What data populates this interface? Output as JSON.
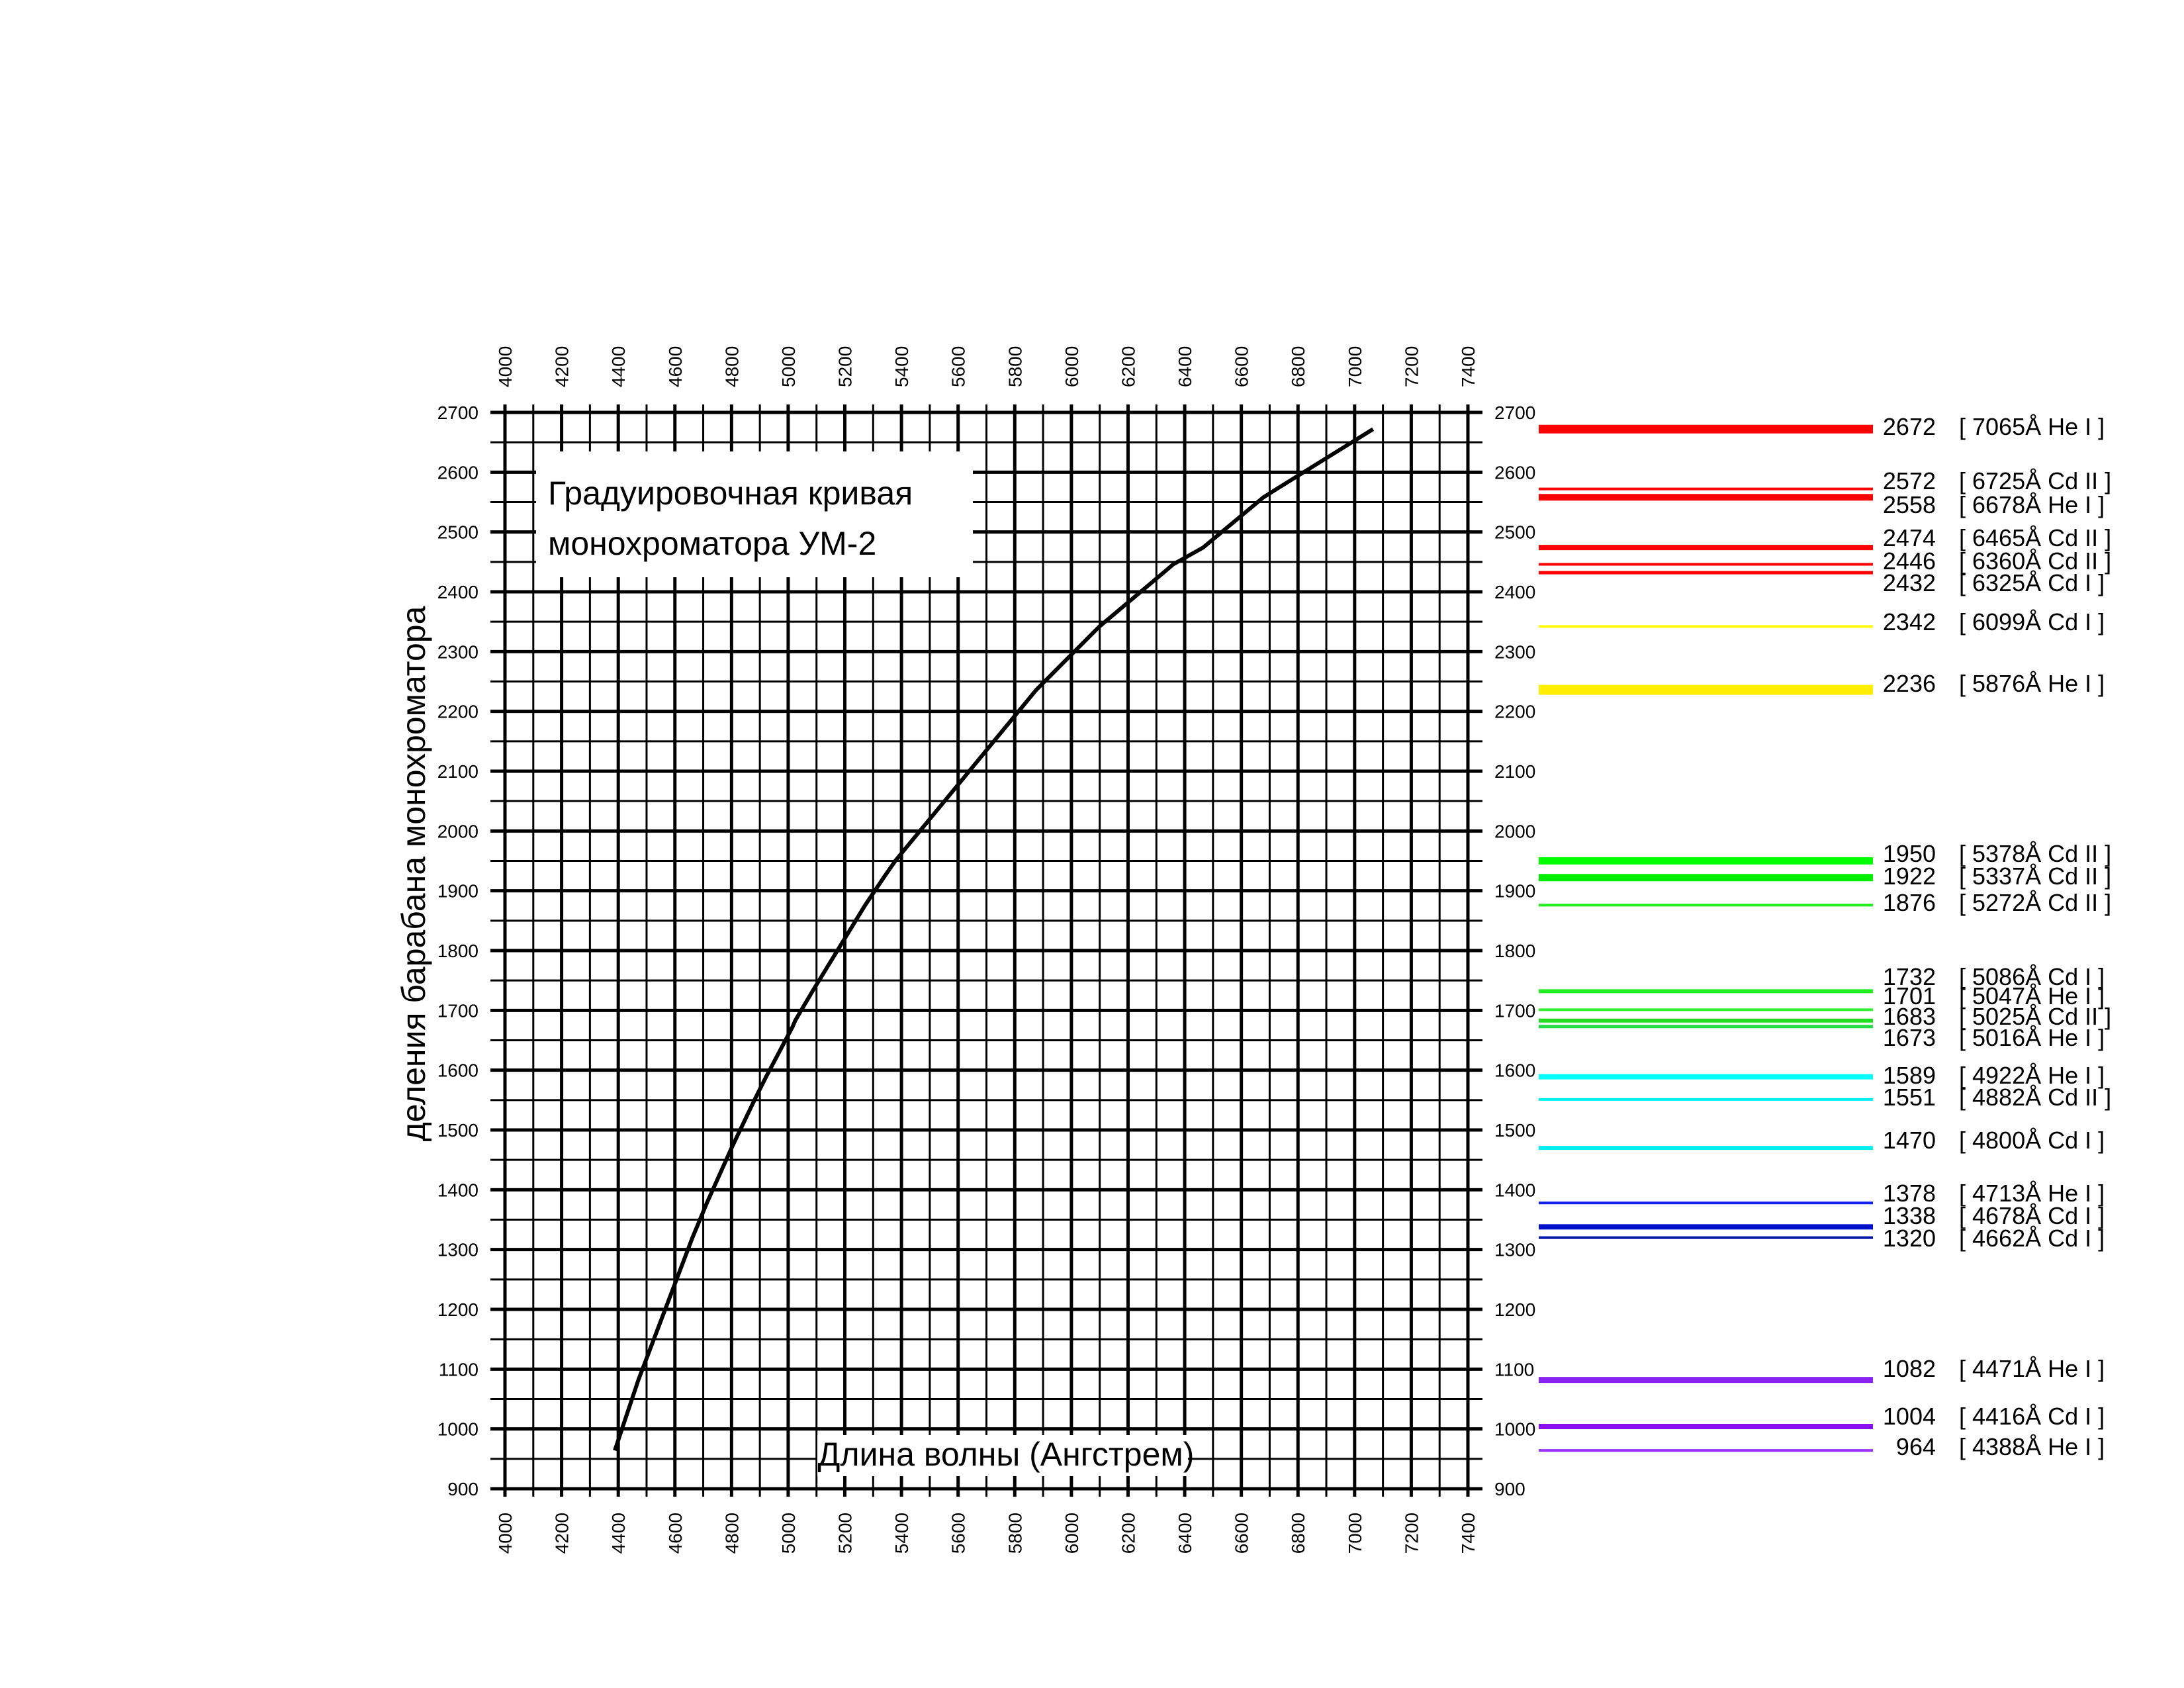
{
  "chart_data": {
    "type": "line",
    "title_lines": [
      "Градуировочная кривая",
      "монохроматора УМ-2"
    ],
    "xlabel": "Длина волны (Ангстрем)",
    "ylabel": "деления барабана монохроматора",
    "xlim": [
      4000,
      7400
    ],
    "ylim": [
      900,
      2700
    ],
    "x_ticks": [
      "4000",
      "4200",
      "4400",
      "4600",
      "4800",
      "5000",
      "5200",
      "5400",
      "5600",
      "5800",
      "6000",
      "6200",
      "6400",
      "6600",
      "6800",
      "7000",
      "7200",
      "7400"
    ],
    "y_ticks": [
      "900",
      "1000",
      "1100",
      "1200",
      "1300",
      "1400",
      "1500",
      "1600",
      "1700",
      "1800",
      "1900",
      "2000",
      "2100",
      "2200",
      "2300",
      "2400",
      "2500",
      "2600",
      "2700"
    ],
    "grid": true,
    "series": [
      {
        "x": [
          4388,
          4416,
          4471,
          4662,
          4678,
          4713,
          4800,
          4882,
          4922,
          5016,
          5025,
          5047,
          5086,
          5272,
          5337,
          5378,
          5876,
          6099,
          6325,
          6360,
          6465,
          6678,
          6725,
          7065
        ],
        "y": [
          964,
          1004,
          1082,
          1320,
          1338,
          1378,
          1470,
          1551,
          1589,
          1673,
          1683,
          1701,
          1732,
          1876,
          1922,
          1950,
          2236,
          2342,
          2432,
          2446,
          2474,
          2558,
          2572,
          2672
        ]
      }
    ],
    "spectral_lines": [
      {
        "division": "2672",
        "label": "[ 7065Å He I ]",
        "color": "#ff0000",
        "width": 13
      },
      {
        "division": "2572",
        "label": "[ 6725Å Cd II ]",
        "color": "#ff0000",
        "width": 4
      },
      {
        "division": "2558",
        "label": "[ 6678Å He I ]",
        "color": "#ff0000",
        "width": 10
      },
      {
        "division": "2474",
        "label": "[ 6465Å Cd II ]",
        "color": "#ff0000",
        "width": 8
      },
      {
        "division": "2446",
        "label": "[ 6360Å Cd II ]",
        "color": "#ff0000",
        "width": 4
      },
      {
        "division": "2432",
        "label": "[ 6325Å Cd I ]",
        "color": "#ff0000",
        "width": 5
      },
      {
        "division": "2342",
        "label": "[ 6099Å Cd I ]",
        "color": "#ffff00",
        "width": 4
      },
      {
        "division": "2236",
        "label": "[ 5876Å He I ]",
        "color": "#ffee00",
        "width": 15
      },
      {
        "division": "1950",
        "label": "[ 5378Å Cd II ]",
        "color": "#00ff00",
        "width": 11
      },
      {
        "division": "1922",
        "label": "[ 5337Å Cd II ]",
        "color": "#00ee00",
        "width": 11
      },
      {
        "division": "1876",
        "label": "[ 5272Å Cd II ]",
        "color": "#22ee22",
        "width": 4
      },
      {
        "division": "1732",
        "label": "[ 5086Å Cd I ]",
        "color": "#22ee22",
        "width": 6
      },
      {
        "division": "1701",
        "label": "[ 5047Å He I ]",
        "color": "#33ee33",
        "width": 4
      },
      {
        "division": "1683",
        "label": "[ 5025Å Cd II ]",
        "color": "#22dd22",
        "width": 6
      },
      {
        "division": "1673",
        "label": "[ 5016Å He I ]",
        "color": "#22dd44",
        "width": 5
      },
      {
        "division": "1589",
        "label": "[ 4922Å He I ]",
        "color": "#00ffff",
        "width": 8
      },
      {
        "division": "1551",
        "label": "[ 4882Å Cd II ]",
        "color": "#00eeee",
        "width": 4
      },
      {
        "division": "1470",
        "label": "[ 4800Å Cd I ]",
        "color": "#00eeee",
        "width": 6
      },
      {
        "division": "1378",
        "label": "[ 4713Å He I ]",
        "color": "#1122ee",
        "width": 4
      },
      {
        "division": "1338",
        "label": "[ 4678Å Cd I ]",
        "color": "#0011cc",
        "width": 8
      },
      {
        "division": "1320",
        "label": "[ 4662Å Cd I ]",
        "color": "#0011aa",
        "width": 4
      },
      {
        "division": "1082",
        "label": "[ 4471Å He I ]",
        "color": "#8822ee",
        "width": 9
      },
      {
        "division": "1004",
        "label": "[ 4416Å Cd I ]",
        "color": "#8811ee",
        "width": 8
      },
      {
        "division": "964",
        "label": "[ 4388Å He I ]",
        "color": "#9933ff",
        "width": 4
      }
    ]
  }
}
